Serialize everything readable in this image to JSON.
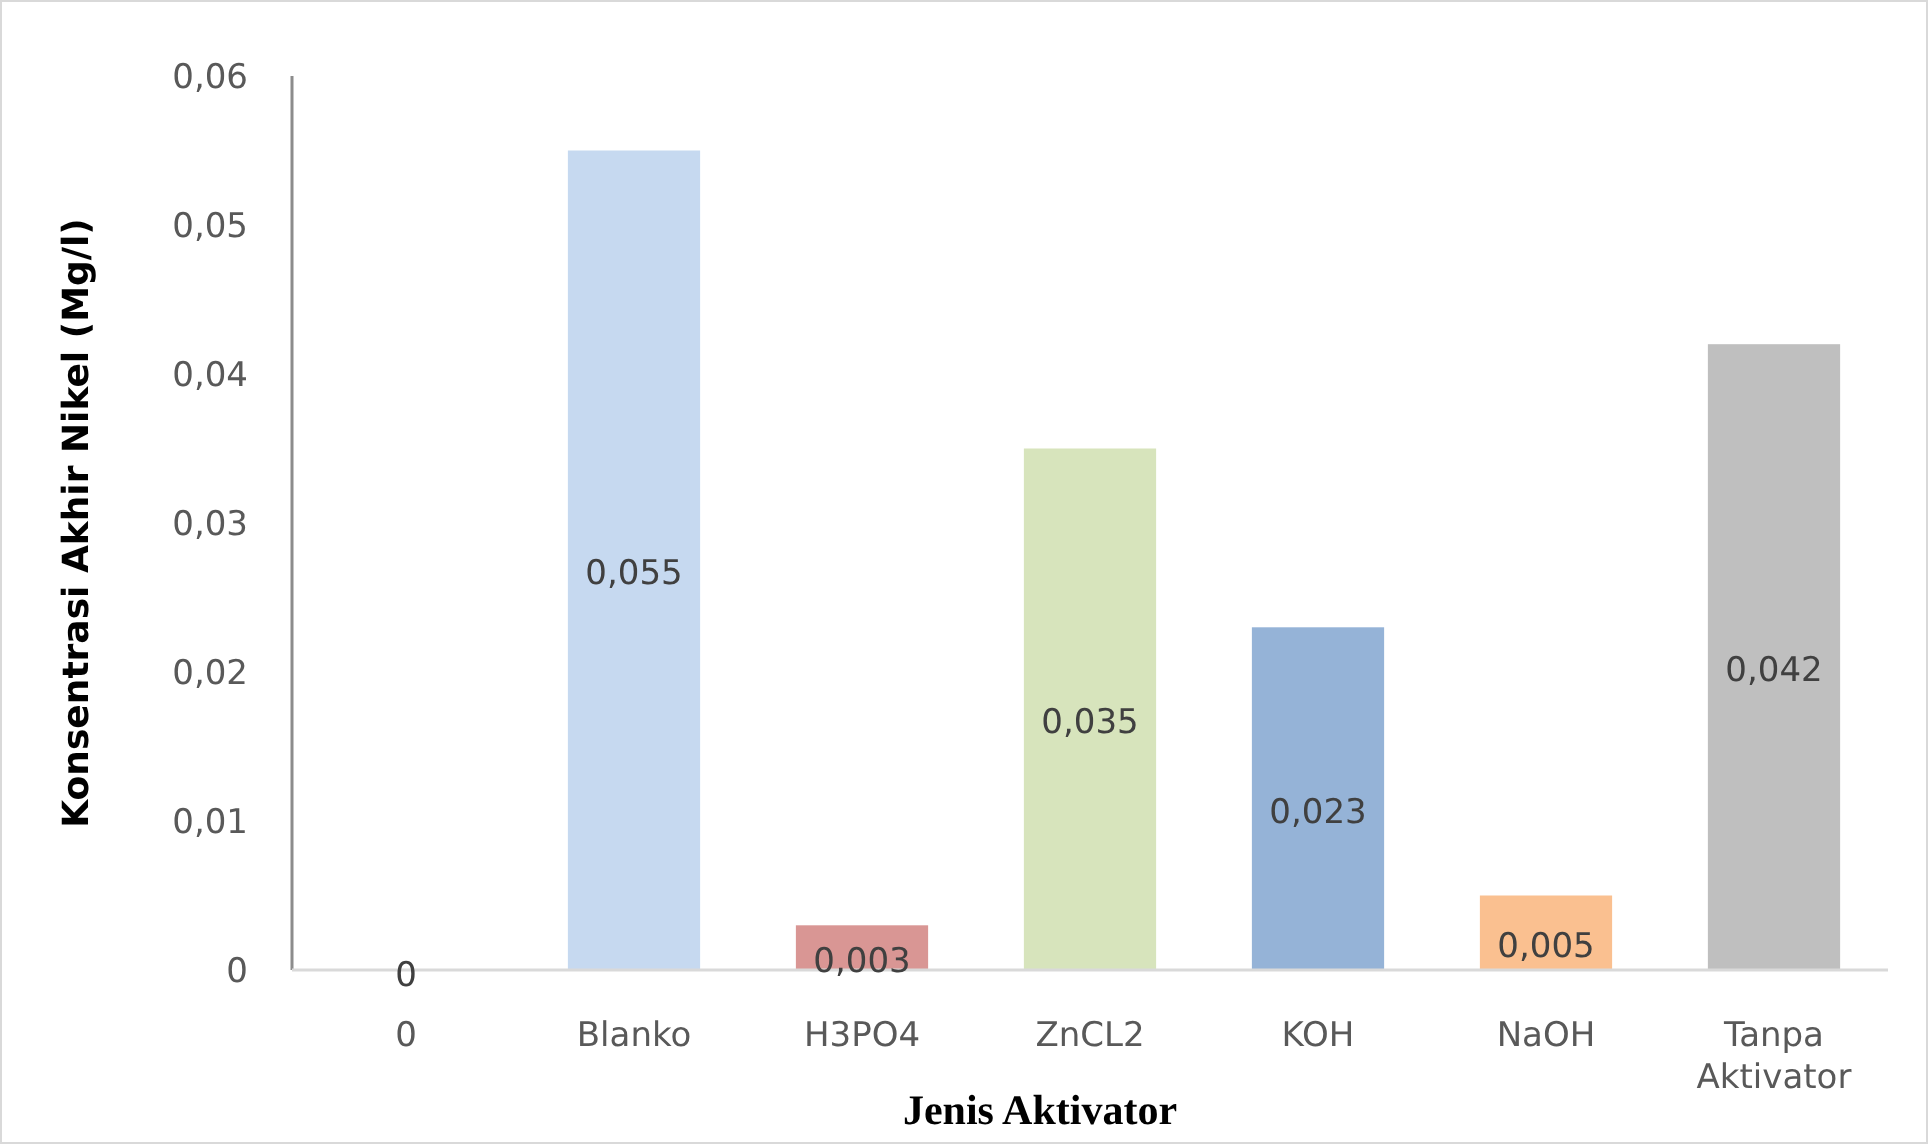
{
  "chart_data": {
    "type": "bar",
    "xlabel": "Jenis Aktivator",
    "ylabel": "Konsentrasi Akhir Nikel (Mg/l)",
    "categories": [
      "0",
      "Blanko",
      "H3PO4",
      "ZnCL2",
      "KOH",
      "NaOH",
      "Tanpa Aktivator"
    ],
    "values": [
      0,
      0.055,
      0.003,
      0.035,
      0.023,
      0.005,
      0.042
    ],
    "value_labels": [
      "0",
      "0,055",
      "0,003",
      "0,035",
      "0,023",
      "0,005",
      "0,042"
    ],
    "colors": [
      "#4472c4",
      "#c6d9f0",
      "#d99694",
      "#d7e4bc",
      "#95b3d7",
      "#fac090",
      "#bfbfbf"
    ],
    "ylim": [
      0,
      0.06
    ],
    "yticks": [
      {
        "value": 0,
        "label": "0"
      },
      {
        "value": 0.01,
        "label": "0,01"
      },
      {
        "value": 0.02,
        "label": "0,02"
      },
      {
        "value": 0.03,
        "label": "0,03"
      },
      {
        "value": 0.04,
        "label": "0,04"
      },
      {
        "value": 0.05,
        "label": "0,05"
      },
      {
        "value": 0.06,
        "label": "0,06"
      }
    ],
    "grid": false
  }
}
